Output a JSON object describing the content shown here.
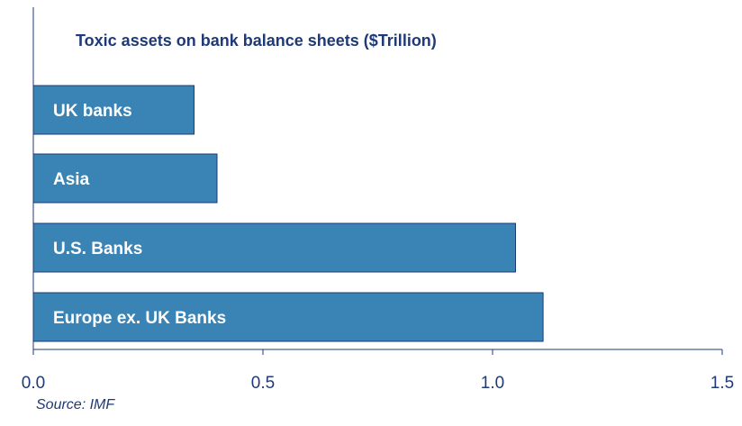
{
  "chart_data": {
    "type": "bar",
    "orientation": "horizontal",
    "title": "Toxic assets on bank balance sheets ($Trillion)",
    "categories": [
      "UK banks",
      "Asia",
      "U.S. Banks",
      "Europe ex. UK Banks"
    ],
    "values": [
      0.35,
      0.4,
      1.05,
      1.11
    ],
    "xlim": [
      0,
      1.5
    ],
    "xticks": [
      "0.0",
      "0.5",
      "1.0",
      "1.5"
    ],
    "xlabel": "",
    "ylabel": "",
    "grid": false,
    "bar_color": "#3a83b5"
  },
  "source_text": "Source: IMF"
}
